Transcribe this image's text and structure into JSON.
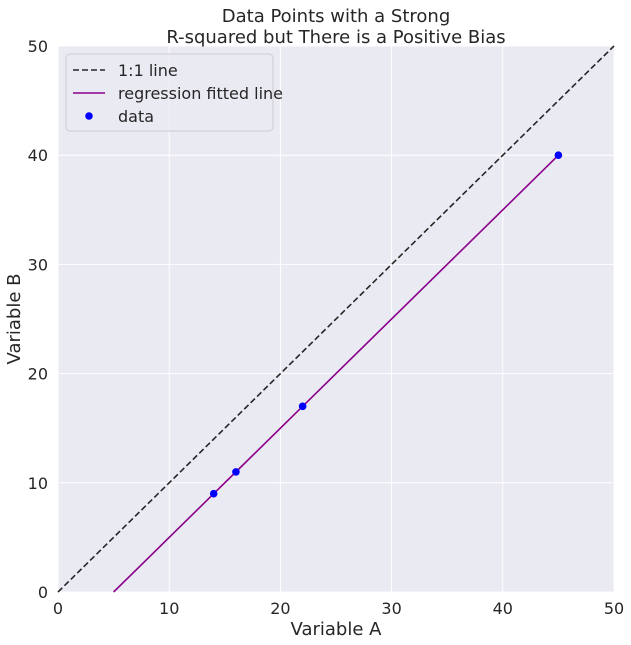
{
  "chart_data": {
    "type": "scatter",
    "title_line1": "Data Points with a Strong",
    "title_line2": "R-squared but There is a Positive Bias",
    "xlabel": "Variable A",
    "ylabel": "Variable B",
    "xlim": [
      0,
      50
    ],
    "ylim": [
      0,
      50
    ],
    "xticks": [
      0,
      10,
      20,
      30,
      40,
      50
    ],
    "yticks": [
      0,
      10,
      20,
      30,
      40,
      50
    ],
    "grid": true,
    "legend_position": "top-left",
    "background_color": "#EAEAF2",
    "grid_color": "#FFFFFF",
    "series": [
      {
        "name": "1:1 line",
        "kind": "line",
        "style": "dashed",
        "color": "#262626",
        "x": [
          0,
          50
        ],
        "y": [
          0,
          50
        ]
      },
      {
        "name": "regression fitted line",
        "kind": "line",
        "style": "solid",
        "color": "#8B008B",
        "x": [
          5,
          14,
          16,
          22,
          45
        ],
        "y": [
          0,
          9,
          11,
          17,
          40
        ]
      },
      {
        "name": "data",
        "kind": "scatter",
        "color": "#0000FF",
        "x": [
          14,
          16,
          22,
          45
        ],
        "y": [
          9,
          11,
          17,
          40
        ]
      }
    ]
  }
}
